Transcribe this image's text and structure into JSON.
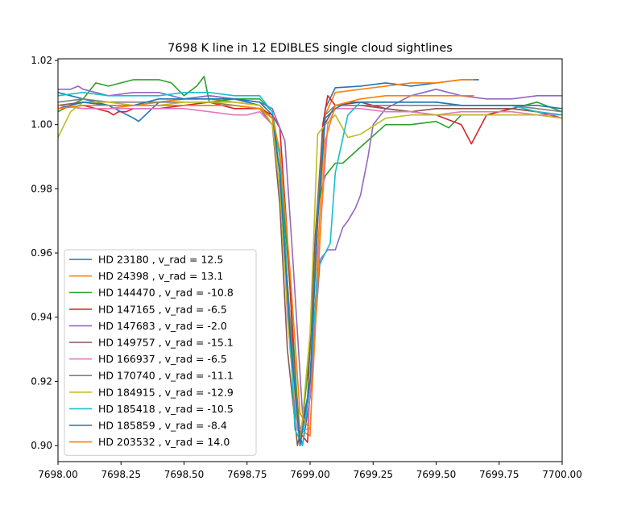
{
  "chart_data": {
    "type": "line",
    "title": "7698 K line in 12 EDIBLES single cloud sightlines",
    "xlabel": "",
    "ylabel": "",
    "xlim": [
      7698.0,
      7700.0
    ],
    "ylim": [
      0.895,
      1.0205
    ],
    "x_ticks": [
      7698.0,
      7698.25,
      7698.5,
      7698.75,
      7699.0,
      7699.25,
      7699.5,
      7699.75,
      7700.0
    ],
    "x_tick_labels": [
      "7698.00",
      "7698.25",
      "7698.50",
      "7698.75",
      "7699.00",
      "7699.25",
      "7699.50",
      "7699.75",
      "7700.00"
    ],
    "y_ticks": [
      0.9,
      0.92,
      0.94,
      0.96,
      0.98,
      1.0,
      1.02
    ],
    "y_tick_labels": [
      "0.90",
      "0.92",
      "0.94",
      "0.96",
      "0.98",
      "1.00",
      "1.02"
    ],
    "grid": false,
    "legend_position": "lower-left",
    "series": [
      {
        "name": "HD 23180 , v_rad = 12.5",
        "color": "#1f77b4",
        "x": [
          7698.0,
          7698.1,
          7698.2,
          7698.3,
          7698.32,
          7698.4,
          7698.5,
          7698.6,
          7698.7,
          7698.8,
          7698.85,
          7698.88,
          7698.9,
          7698.94,
          7698.97,
          7699.0,
          7699.03,
          7699.06,
          7699.1,
          7699.2,
          7699.3,
          7699.4,
          7699.5,
          7699.6,
          7699.67
        ],
        "y": [
          1.01,
          1.008,
          1.006,
          1.002,
          1.001,
          1.007,
          1.008,
          1.009,
          1.008,
          1.006,
          1.002,
          0.99,
          0.965,
          0.91,
          0.9,
          0.915,
          0.975,
          1.005,
          1.0115,
          1.012,
          1.013,
          1.012,
          1.013,
          1.014,
          1.014
        ]
      },
      {
        "name": "HD 24398 , v_rad = 13.1",
        "color": "#ff7f0e",
        "x": [
          7698.0,
          7698.1,
          7698.2,
          7698.3,
          7698.4,
          7698.5,
          7698.6,
          7698.7,
          7698.8,
          7698.85,
          7698.88,
          7698.92,
          7698.96,
          7699.0,
          7699.03,
          7699.06,
          7699.1,
          7699.2,
          7699.3,
          7699.4,
          7699.5,
          7699.6,
          7699.65
        ],
        "y": [
          1.006,
          1.005,
          1.005,
          1.006,
          1.007,
          1.008,
          1.008,
          1.007,
          1.006,
          1.002,
          0.985,
          0.94,
          0.905,
          0.903,
          0.96,
          1.003,
          1.01,
          1.011,
          1.012,
          1.013,
          1.013,
          1.014,
          1.014
        ]
      },
      {
        "name": "HD 144470 , v_rad = -10.8",
        "color": "#2ca02c",
        "x": [
          7698.0,
          7698.1,
          7698.15,
          7698.2,
          7698.3,
          7698.4,
          7698.45,
          7698.5,
          7698.55,
          7698.58,
          7698.6,
          7698.7,
          7698.8,
          7698.85,
          7698.88,
          7698.92,
          7698.96,
          7699.0,
          7699.03,
          7699.06,
          7699.1,
          7699.13,
          7699.2,
          7699.3,
          7699.4,
          7699.5,
          7699.55,
          7699.6,
          7699.7,
          7699.8,
          7699.9,
          7700.0
        ],
        "y": [
          1.004,
          1.008,
          1.013,
          1.012,
          1.014,
          1.014,
          1.013,
          1.009,
          1.012,
          1.015,
          1.007,
          1.008,
          1.008,
          1.004,
          0.99,
          0.95,
          0.9,
          0.93,
          0.975,
          0.984,
          0.988,
          0.988,
          0.993,
          1.0,
          1.0,
          1.001,
          0.999,
          1.003,
          1.003,
          1.005,
          1.007,
          1.004
        ]
      },
      {
        "name": "HD 147165 , v_rad = -6.5",
        "color": "#d62728",
        "x": [
          7698.0,
          7698.1,
          7698.2,
          7698.22,
          7698.24,
          7698.27,
          7698.3,
          7698.4,
          7698.5,
          7698.6,
          7698.7,
          7698.75,
          7698.8,
          7698.85,
          7698.88,
          7698.91,
          7698.95,
          7698.99,
          7699.02,
          7699.05,
          7699.07,
          7699.1,
          7699.2,
          7699.3,
          7699.4,
          7699.5,
          7699.6,
          7699.64,
          7699.7,
          7699.8,
          7699.9,
          7700.0
        ],
        "y": [
          1.005,
          1.006,
          1.004,
          1.003,
          1.004,
          1.004,
          1.005,
          1.005,
          1.006,
          1.007,
          1.005,
          1.005,
          1.005,
          1.003,
          0.999,
          0.965,
          0.905,
          0.901,
          0.955,
          1.0,
          1.009,
          1.006,
          1.007,
          1.005,
          1.004,
          1.003,
          1.0,
          0.994,
          1.003,
          1.005,
          1.004,
          1.002
        ]
      },
      {
        "name": "HD 147683 , v_rad = -2.0",
        "color": "#9467bd",
        "x": [
          7698.0,
          7698.05,
          7698.08,
          7698.1,
          7698.2,
          7698.3,
          7698.4,
          7698.5,
          7698.6,
          7698.7,
          7698.8,
          7698.85,
          7698.9,
          7698.93,
          7698.97,
          7699.0,
          7699.04,
          7699.07,
          7699.1,
          7699.13,
          7699.15,
          7699.18,
          7699.2,
          7699.23,
          7699.25,
          7699.3,
          7699.4,
          7699.5,
          7699.6,
          7699.7,
          7699.8,
          7699.9,
          7700.0
        ],
        "y": [
          1.011,
          1.011,
          1.012,
          1.011,
          1.009,
          1.01,
          1.01,
          1.008,
          1.009,
          1.008,
          1.007,
          1.005,
          0.995,
          0.96,
          0.91,
          0.915,
          0.958,
          0.961,
          0.961,
          0.968,
          0.97,
          0.974,
          0.978,
          0.99,
          1.0,
          1.005,
          1.009,
          1.011,
          1.009,
          1.008,
          1.008,
          1.009,
          1.009
        ]
      },
      {
        "name": "HD 149757 , v_rad = -15.1",
        "color": "#8c564b",
        "x": [
          7698.0,
          7698.1,
          7698.2,
          7698.3,
          7698.4,
          7698.5,
          7698.6,
          7698.7,
          7698.8,
          7698.85,
          7698.88,
          7698.91,
          7698.95,
          7698.99,
          7699.02,
          7699.05,
          7699.1,
          7699.2,
          7699.3,
          7699.4,
          7699.5,
          7699.6,
          7699.7,
          7699.8,
          7699.9,
          7700.0
        ],
        "y": [
          1.006,
          1.007,
          1.006,
          1.006,
          1.006,
          1.006,
          1.006,
          1.006,
          1.005,
          1.0,
          0.975,
          0.93,
          0.9,
          0.915,
          0.965,
          0.999,
          1.006,
          1.006,
          1.005,
          1.004,
          1.005,
          1.005,
          1.005,
          1.005,
          1.004,
          1.003
        ]
      },
      {
        "name": "HD 166937 , v_rad = -6.5",
        "color": "#e377c2",
        "x": [
          7698.0,
          7698.1,
          7698.2,
          7698.3,
          7698.4,
          7698.5,
          7698.6,
          7698.7,
          7698.75,
          7698.8,
          7698.85,
          7698.88,
          7698.91,
          7698.95,
          7698.99,
          7699.03,
          7699.07,
          7699.1,
          7699.2,
          7699.3,
          7699.4,
          7699.5,
          7699.6,
          7699.7,
          7699.8,
          7699.9,
          7700.0
        ],
        "y": [
          1.006,
          1.005,
          1.005,
          1.005,
          1.005,
          1.005,
          1.004,
          1.003,
          1.003,
          1.004,
          1.0,
          0.985,
          0.94,
          0.905,
          0.905,
          0.955,
          1.0,
          1.005,
          1.005,
          1.004,
          1.004,
          1.003,
          1.004,
          1.004,
          1.004,
          1.003,
          1.003
        ]
      },
      {
        "name": "HD 170740 , v_rad = -11.1",
        "color": "#7f7f7f",
        "x": [
          7698.0,
          7698.1,
          7698.2,
          7698.3,
          7698.4,
          7698.5,
          7698.6,
          7698.7,
          7698.8,
          7698.85,
          7698.88,
          7698.92,
          7698.96,
          7699.0,
          7699.03,
          7699.06,
          7699.1,
          7699.2,
          7699.3,
          7699.4,
          7699.5,
          7699.6,
          7699.7,
          7699.8,
          7699.9,
          7700.0
        ],
        "y": [
          1.007,
          1.008,
          1.007,
          1.007,
          1.007,
          1.007,
          1.007,
          1.006,
          1.005,
          1.0,
          0.985,
          0.94,
          0.9,
          0.92,
          0.975,
          1.003,
          1.006,
          1.006,
          1.006,
          1.006,
          1.006,
          1.006,
          1.006,
          1.006,
          1.005,
          1.004
        ]
      },
      {
        "name": "HD 184915 , v_rad = -12.9",
        "color": "#bcbd22",
        "x": [
          7698.0,
          7698.05,
          7698.1,
          7698.2,
          7698.3,
          7698.4,
          7698.5,
          7698.6,
          7698.7,
          7698.8,
          7698.85,
          7698.88,
          7698.92,
          7698.96,
          7699.0,
          7699.03,
          7699.06,
          7699.1,
          7699.15,
          7699.2,
          7699.3,
          7699.4,
          7699.5,
          7699.6,
          7699.7,
          7699.8,
          7699.9,
          7700.0
        ],
        "y": [
          0.996,
          1.004,
          1.007,
          1.007,
          1.006,
          1.006,
          1.007,
          1.007,
          1.007,
          1.006,
          1.0,
          0.98,
          0.93,
          0.9,
          0.935,
          0.997,
          1.0,
          1.003,
          0.996,
          0.997,
          1.002,
          1.003,
          1.003,
          1.003,
          1.003,
          1.003,
          1.003,
          1.002
        ]
      },
      {
        "name": "HD 185418 , v_rad = -10.5",
        "color": "#17becf",
        "x": [
          7698.0,
          7698.1,
          7698.2,
          7698.3,
          7698.4,
          7698.5,
          7698.6,
          7698.7,
          7698.8,
          7698.85,
          7698.88,
          7698.91,
          7698.94,
          7698.97,
          7699.0,
          7699.03,
          7699.06,
          7699.08,
          7699.1,
          7699.15,
          7699.2,
          7699.3,
          7699.4,
          7699.5,
          7699.6,
          7699.7,
          7699.8,
          7699.9,
          7700.0
        ],
        "y": [
          1.009,
          1.01,
          1.009,
          1.009,
          1.009,
          1.01,
          1.01,
          1.009,
          1.009,
          1.004,
          0.99,
          0.95,
          0.905,
          0.9,
          0.92,
          0.955,
          0.96,
          0.963,
          0.985,
          1.003,
          1.007,
          1.007,
          1.007,
          1.007,
          1.006,
          1.006,
          1.006,
          1.004,
          1.003
        ]
      },
      {
        "name": "HD 185859 , v_rad = -8.4",
        "color": "#1f77b4",
        "x": [
          7698.0,
          7698.1,
          7698.2,
          7698.3,
          7698.4,
          7698.5,
          7698.6,
          7698.7,
          7698.8,
          7698.85,
          7698.88,
          7698.92,
          7698.96,
          7699.0,
          7699.03,
          7699.06,
          7699.1,
          7699.15,
          7699.2,
          7699.3,
          7699.4,
          7699.5,
          7699.6,
          7699.7,
          7699.8,
          7699.9,
          7700.0
        ],
        "y": [
          1.005,
          1.007,
          1.006,
          1.006,
          1.008,
          1.008,
          1.008,
          1.008,
          1.007,
          1.003,
          0.985,
          0.935,
          0.9,
          0.92,
          0.97,
          1.002,
          1.005,
          1.007,
          1.007,
          1.007,
          1.007,
          1.007,
          1.006,
          1.006,
          1.006,
          1.006,
          1.005
        ]
      },
      {
        "name": "HD 203532 , v_rad = 14.0",
        "color": "#ff7f0e",
        "x": [
          7698.0,
          7698.1,
          7698.2,
          7698.3,
          7698.4,
          7698.5,
          7698.6,
          7698.7,
          7698.8,
          7698.85,
          7698.88,
          7698.92,
          7698.96,
          7699.0,
          7699.03,
          7699.06,
          7699.1,
          7699.2,
          7699.3,
          7699.4,
          7699.5,
          7699.6,
          7699.65
        ],
        "y": [
          1.005,
          1.006,
          1.006,
          1.006,
          1.006,
          1.006,
          1.006,
          1.006,
          1.005,
          1.002,
          0.992,
          0.955,
          0.91,
          0.905,
          0.95,
          0.995,
          1.006,
          1.008,
          1.009,
          1.009,
          1.009,
          1.009,
          1.009
        ]
      }
    ]
  }
}
